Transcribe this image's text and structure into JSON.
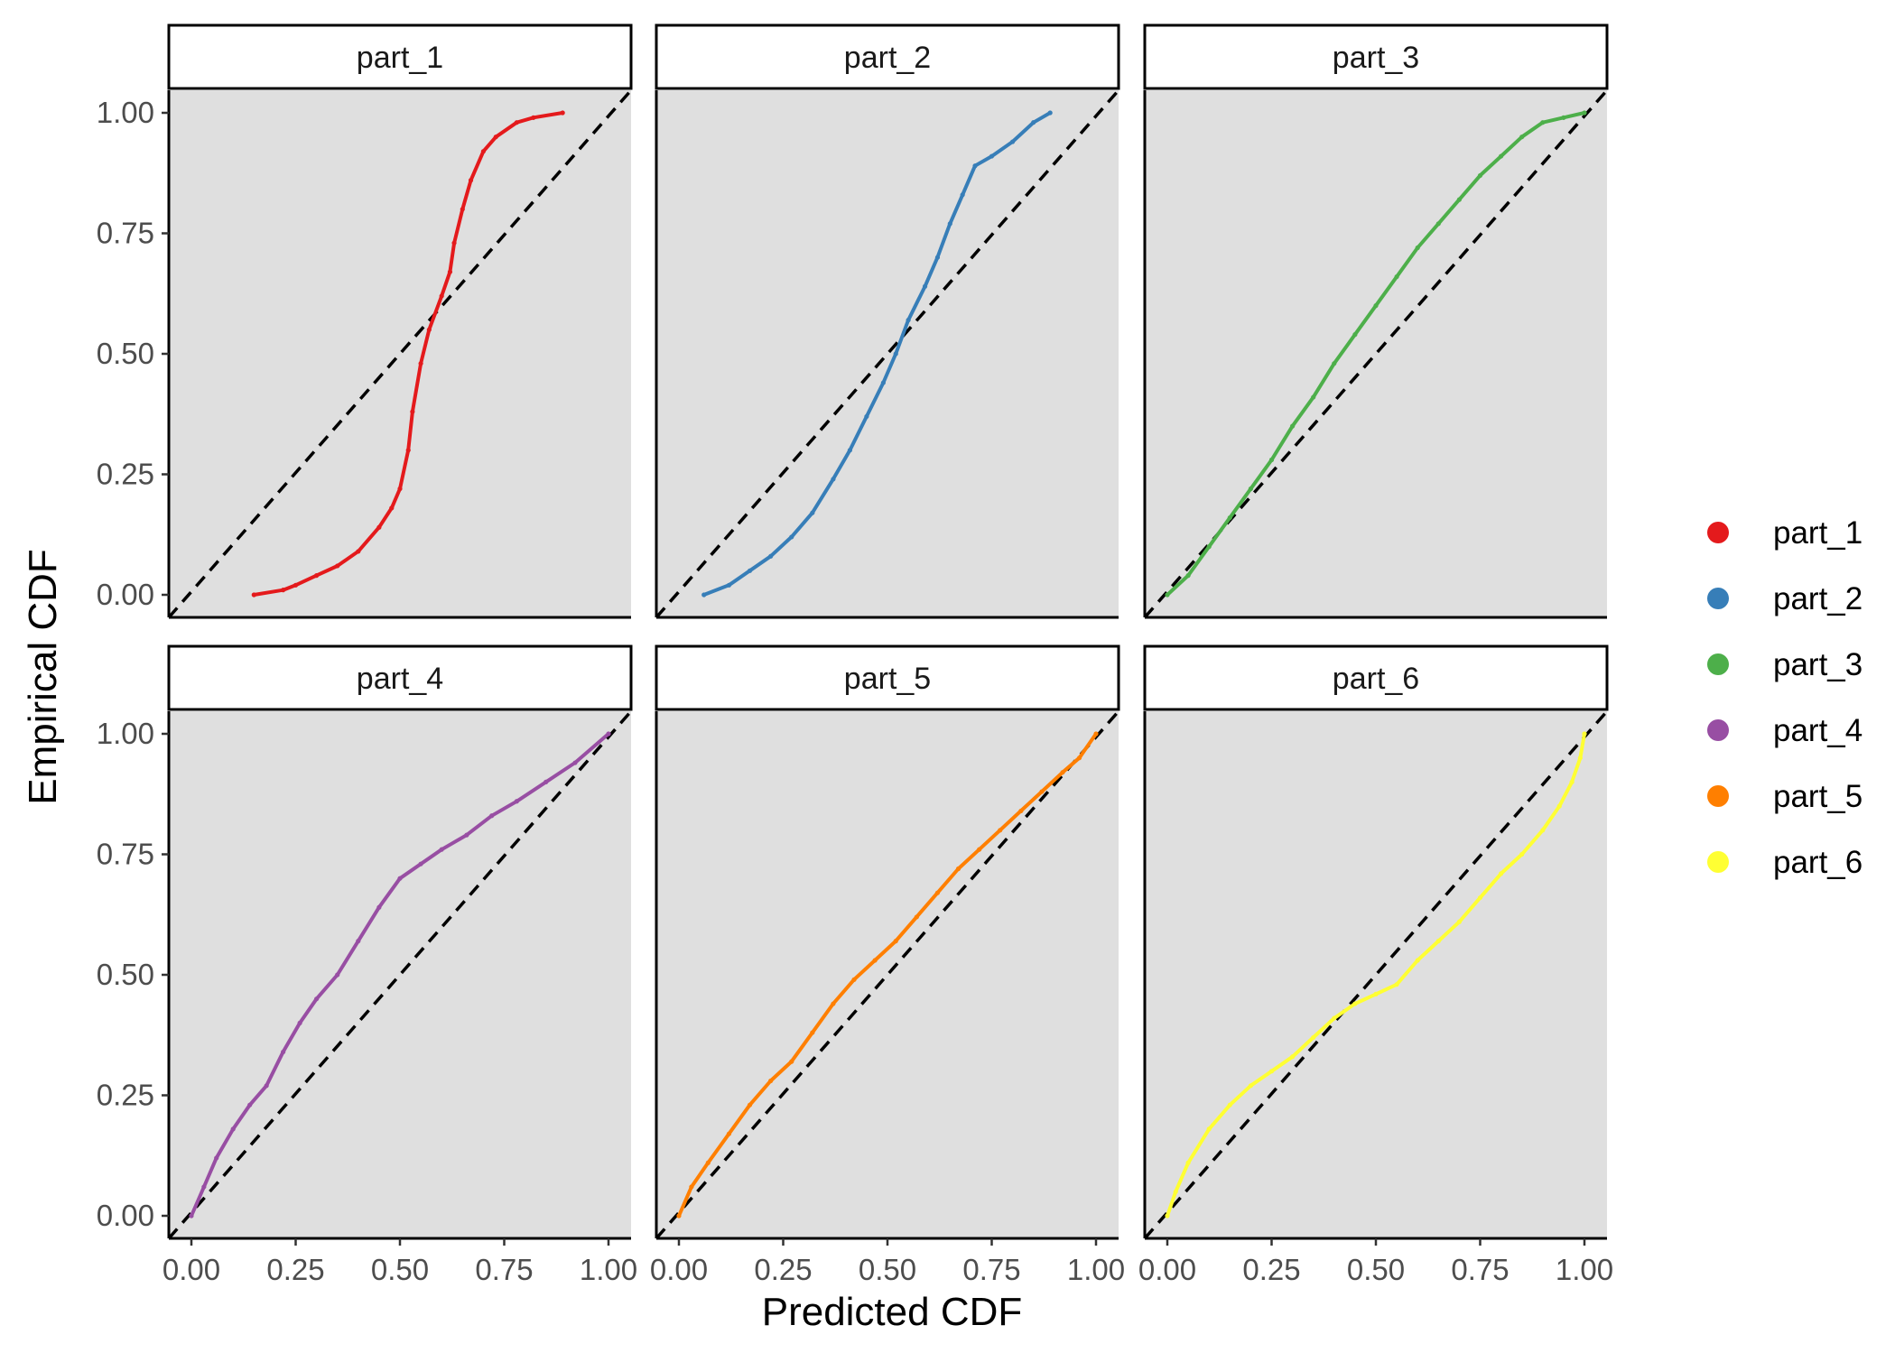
{
  "chart_data": {
    "type": "scatter",
    "facet_layout": "2 rows x 3 columns",
    "xlabel": "Predicted CDF",
    "ylabel": "Empirical CDF",
    "xlim": [
      0,
      1
    ],
    "ylim": [
      0,
      1
    ],
    "x_ticks": [
      "0.00",
      "0.25",
      "0.50",
      "0.75",
      "1.00"
    ],
    "y_ticks": [
      "0.00",
      "0.25",
      "0.50",
      "0.75",
      "1.00"
    ],
    "reference_line": "y = x (dashed, black)",
    "panel_background": "#dfdfdf",
    "legend_position": "right",
    "series": [
      {
        "name": "part_1",
        "color": "#e41a1c",
        "points": [
          [
            0.15,
            0.0
          ],
          [
            0.22,
            0.01
          ],
          [
            0.25,
            0.02
          ],
          [
            0.3,
            0.04
          ],
          [
            0.35,
            0.06
          ],
          [
            0.4,
            0.09
          ],
          [
            0.45,
            0.14
          ],
          [
            0.48,
            0.18
          ],
          [
            0.5,
            0.22
          ],
          [
            0.52,
            0.3
          ],
          [
            0.53,
            0.38
          ],
          [
            0.55,
            0.48
          ],
          [
            0.57,
            0.55
          ],
          [
            0.6,
            0.62
          ],
          [
            0.62,
            0.67
          ],
          [
            0.63,
            0.73
          ],
          [
            0.65,
            0.8
          ],
          [
            0.67,
            0.86
          ],
          [
            0.7,
            0.92
          ],
          [
            0.73,
            0.95
          ],
          [
            0.78,
            0.98
          ],
          [
            0.82,
            0.99
          ],
          [
            0.89,
            1.0
          ]
        ]
      },
      {
        "name": "part_2",
        "color": "#377eb8",
        "points": [
          [
            0.06,
            0.0
          ],
          [
            0.12,
            0.02
          ],
          [
            0.17,
            0.05
          ],
          [
            0.22,
            0.08
          ],
          [
            0.27,
            0.12
          ],
          [
            0.32,
            0.17
          ],
          [
            0.37,
            0.24
          ],
          [
            0.41,
            0.3
          ],
          [
            0.45,
            0.37
          ],
          [
            0.49,
            0.44
          ],
          [
            0.52,
            0.5
          ],
          [
            0.55,
            0.57
          ],
          [
            0.59,
            0.64
          ],
          [
            0.62,
            0.7
          ],
          [
            0.65,
            0.77
          ],
          [
            0.68,
            0.83
          ],
          [
            0.71,
            0.89
          ],
          [
            0.75,
            0.91
          ],
          [
            0.8,
            0.94
          ],
          [
            0.85,
            0.98
          ],
          [
            0.89,
            1.0
          ]
        ]
      },
      {
        "name": "part_3",
        "color": "#4daf4a",
        "points": [
          [
            0.0,
            0.0
          ],
          [
            0.05,
            0.04
          ],
          [
            0.1,
            0.1
          ],
          [
            0.15,
            0.16
          ],
          [
            0.2,
            0.22
          ],
          [
            0.25,
            0.28
          ],
          [
            0.3,
            0.35
          ],
          [
            0.35,
            0.41
          ],
          [
            0.4,
            0.48
          ],
          [
            0.45,
            0.54
          ],
          [
            0.5,
            0.6
          ],
          [
            0.55,
            0.66
          ],
          [
            0.6,
            0.72
          ],
          [
            0.65,
            0.77
          ],
          [
            0.7,
            0.82
          ],
          [
            0.75,
            0.87
          ],
          [
            0.8,
            0.91
          ],
          [
            0.85,
            0.95
          ],
          [
            0.9,
            0.98
          ],
          [
            0.95,
            0.99
          ],
          [
            1.0,
            1.0
          ]
        ]
      },
      {
        "name": "part_4",
        "color": "#984ea3",
        "points": [
          [
            0.0,
            0.0
          ],
          [
            0.03,
            0.06
          ],
          [
            0.06,
            0.12
          ],
          [
            0.1,
            0.18
          ],
          [
            0.14,
            0.23
          ],
          [
            0.18,
            0.27
          ],
          [
            0.22,
            0.34
          ],
          [
            0.26,
            0.4
          ],
          [
            0.3,
            0.45
          ],
          [
            0.35,
            0.5
          ],
          [
            0.4,
            0.57
          ],
          [
            0.45,
            0.64
          ],
          [
            0.5,
            0.7
          ],
          [
            0.55,
            0.73
          ],
          [
            0.6,
            0.76
          ],
          [
            0.66,
            0.79
          ],
          [
            0.72,
            0.83
          ],
          [
            0.78,
            0.86
          ],
          [
            0.85,
            0.9
          ],
          [
            0.92,
            0.94
          ],
          [
            1.0,
            1.0
          ]
        ]
      },
      {
        "name": "part_5",
        "color": "#ff7f00",
        "points": [
          [
            0.0,
            0.0
          ],
          [
            0.03,
            0.06
          ],
          [
            0.07,
            0.11
          ],
          [
            0.12,
            0.17
          ],
          [
            0.17,
            0.23
          ],
          [
            0.22,
            0.28
          ],
          [
            0.27,
            0.32
          ],
          [
            0.32,
            0.38
          ],
          [
            0.37,
            0.44
          ],
          [
            0.42,
            0.49
          ],
          [
            0.47,
            0.53
          ],
          [
            0.52,
            0.57
          ],
          [
            0.57,
            0.62
          ],
          [
            0.62,
            0.67
          ],
          [
            0.67,
            0.72
          ],
          [
            0.72,
            0.76
          ],
          [
            0.77,
            0.8
          ],
          [
            0.82,
            0.84
          ],
          [
            0.87,
            0.88
          ],
          [
            0.92,
            0.92
          ],
          [
            0.96,
            0.95
          ],
          [
            1.0,
            1.0
          ]
        ]
      },
      {
        "name": "part_6",
        "color": "#ffff33",
        "points": [
          [
            0.0,
            0.0
          ],
          [
            0.02,
            0.05
          ],
          [
            0.05,
            0.11
          ],
          [
            0.1,
            0.18
          ],
          [
            0.15,
            0.23
          ],
          [
            0.2,
            0.27
          ],
          [
            0.25,
            0.3
          ],
          [
            0.3,
            0.33
          ],
          [
            0.35,
            0.37
          ],
          [
            0.4,
            0.41
          ],
          [
            0.45,
            0.44
          ],
          [
            0.5,
            0.46
          ],
          [
            0.55,
            0.48
          ],
          [
            0.6,
            0.53
          ],
          [
            0.65,
            0.57
          ],
          [
            0.7,
            0.61
          ],
          [
            0.75,
            0.66
          ],
          [
            0.8,
            0.71
          ],
          [
            0.85,
            0.75
          ],
          [
            0.9,
            0.8
          ],
          [
            0.94,
            0.85
          ],
          [
            0.97,
            0.9
          ],
          [
            0.99,
            0.95
          ],
          [
            1.0,
            1.0
          ]
        ]
      }
    ]
  }
}
